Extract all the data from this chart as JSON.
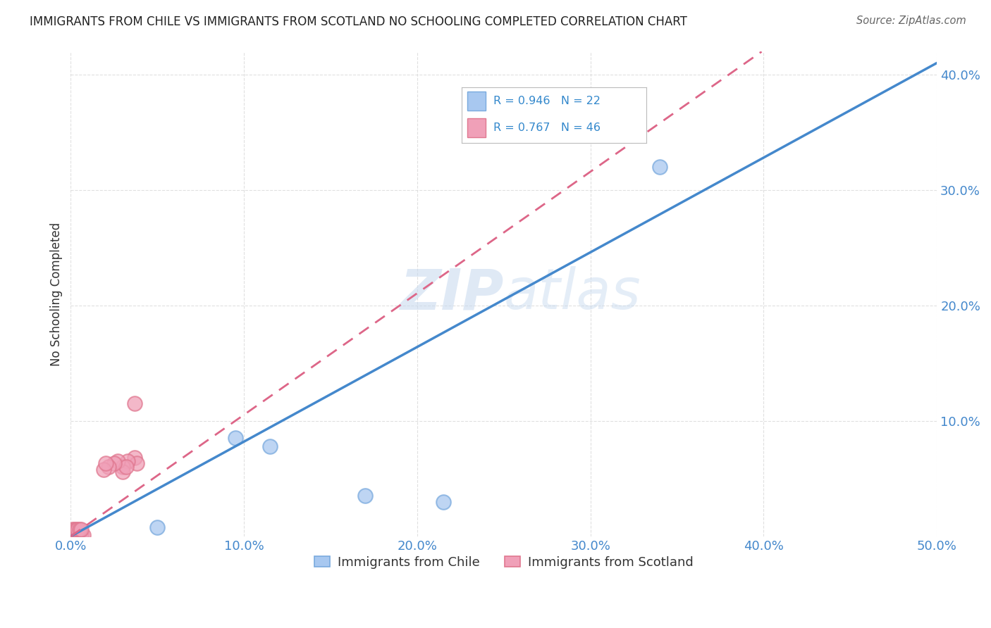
{
  "title": "IMMIGRANTS FROM CHILE VS IMMIGRANTS FROM SCOTLAND NO SCHOOLING COMPLETED CORRELATION CHART",
  "source": "Source: ZipAtlas.com",
  "ylabel": "No Schooling Completed",
  "xlim": [
    0.0,
    0.5
  ],
  "ylim": [
    0.0,
    0.42
  ],
  "xticks": [
    0.0,
    0.1,
    0.2,
    0.3,
    0.4,
    0.5
  ],
  "yticks": [
    0.1,
    0.2,
    0.3,
    0.4
  ],
  "xtick_labels": [
    "0.0%",
    "10.0%",
    "20.0%",
    "30.0%",
    "40.0%",
    "50.0%"
  ],
  "ytick_labels": [
    "10.0%",
    "20.0%",
    "30.0%",
    "40.0%"
  ],
  "chile_color": "#a8c8f0",
  "scotland_color": "#f0a0b8",
  "chile_edge_color": "#7aaade",
  "scotland_edge_color": "#e07890",
  "chile_line_color": "#4488cc",
  "scotland_line_color": "#dd6688",
  "chile_R": 0.946,
  "chile_N": 22,
  "scotland_R": 0.767,
  "scotland_N": 46,
  "watermark_zip": "ZIP",
  "watermark_atlas": "atlas",
  "legend_chile": "Immigrants from Chile",
  "legend_scotland": "Immigrants from Scotland",
  "chile_x": [
    0.001,
    0.002,
    0.003,
    0.001,
    0.002,
    0.003,
    0.004,
    0.001,
    0.003,
    0.002,
    0.001,
    0.05,
    0.095,
    0.115,
    0.17,
    0.215,
    0.34,
    0.001,
    0.002,
    0.001,
    0.003,
    0.002
  ],
  "chile_y": [
    0.001,
    0.001,
    0.001,
    0.002,
    0.002,
    0.002,
    0.001,
    0.003,
    0.003,
    0.001,
    0.001,
    0.008,
    0.085,
    0.078,
    0.035,
    0.03,
    0.32,
    0.001,
    0.002,
    0.001,
    0.001,
    0.001
  ],
  "scot_x": [
    0.001,
    0.002,
    0.003,
    0.004,
    0.005,
    0.001,
    0.002,
    0.003,
    0.004,
    0.005,
    0.001,
    0.002,
    0.003,
    0.004,
    0.005,
    0.006,
    0.001,
    0.002,
    0.003,
    0.004,
    0.005,
    0.001,
    0.002,
    0.003,
    0.004,
    0.005,
    0.006,
    0.007,
    0.001,
    0.002,
    0.003,
    0.004,
    0.005,
    0.006,
    0.037,
    0.037,
    0.038,
    0.033,
    0.03,
    0.03,
    0.027,
    0.032,
    0.025,
    0.022,
    0.019,
    0.02
  ],
  "scot_y": [
    0.001,
    0.001,
    0.001,
    0.001,
    0.001,
    0.002,
    0.002,
    0.002,
    0.002,
    0.002,
    0.003,
    0.003,
    0.003,
    0.003,
    0.003,
    0.001,
    0.004,
    0.004,
    0.004,
    0.004,
    0.004,
    0.005,
    0.005,
    0.005,
    0.005,
    0.005,
    0.001,
    0.001,
    0.006,
    0.006,
    0.006,
    0.006,
    0.006,
    0.006,
    0.115,
    0.068,
    0.063,
    0.065,
    0.06,
    0.056,
    0.065,
    0.06,
    0.063,
    0.06,
    0.058,
    0.063
  ],
  "background_color": "#ffffff",
  "grid_color": "#dddddd"
}
